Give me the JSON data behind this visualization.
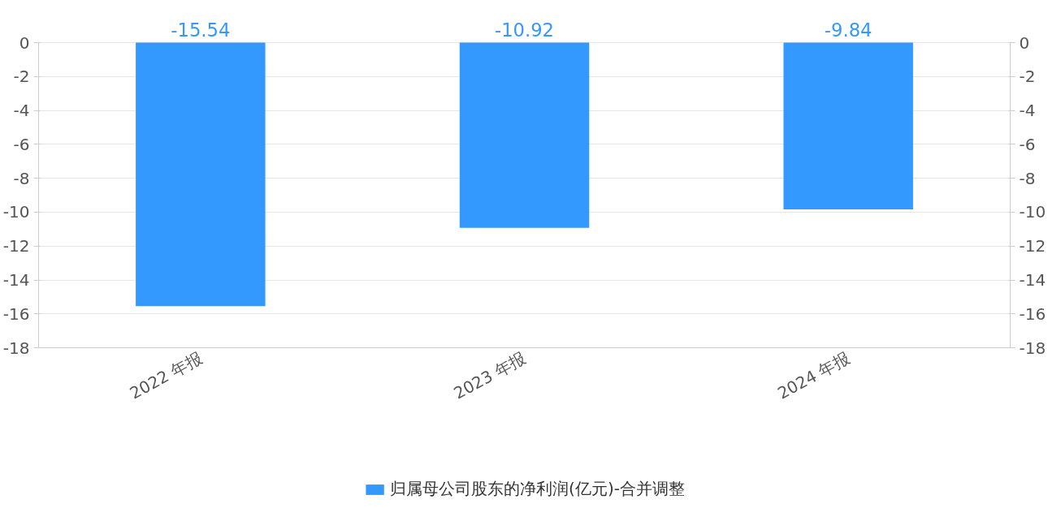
{
  "chart_data": {
    "type": "bar",
    "categories": [
      "2022 年报",
      "2023 年报",
      "2024 年报"
    ],
    "series": [
      {
        "name": "归属母公司股东的净利润(亿元)-合并调整",
        "color": "#3399ff",
        "values": [
          -15.54,
          -10.92,
          -9.84
        ]
      }
    ],
    "ylim": [
      -18,
      0
    ],
    "yticks": [
      0,
      -2,
      -4,
      -6,
      -8,
      -10,
      -12,
      -14,
      -16,
      -18
    ],
    "y2lim": [
      -18,
      0
    ],
    "y2ticks": [
      0,
      -2,
      -4,
      -6,
      -8,
      -10,
      -12,
      -14,
      -16,
      -18
    ],
    "data_labels": true,
    "grid": "y",
    "legend": "bottom"
  }
}
